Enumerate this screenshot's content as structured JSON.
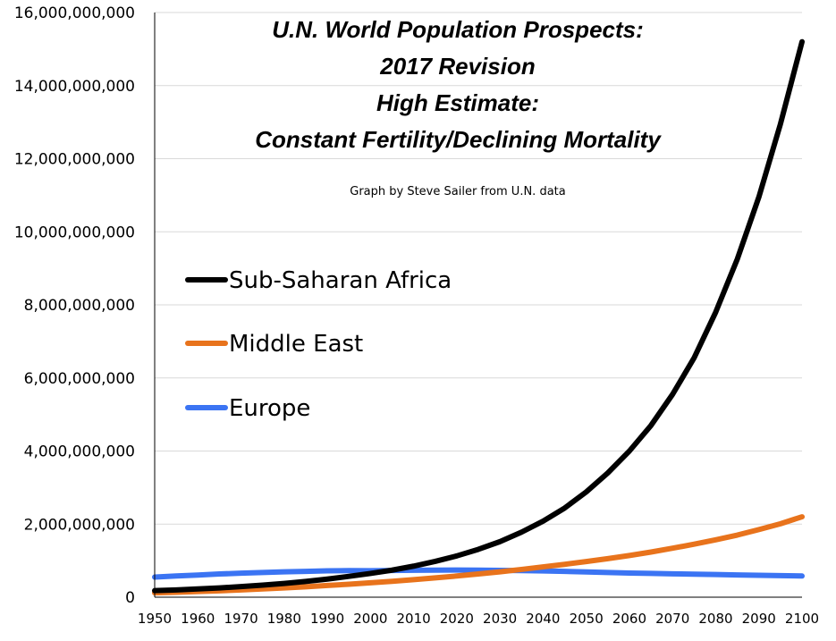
{
  "chart_data": {
    "type": "line",
    "title_lines": [
      "U.N. World Population Prospects:",
      "2017 Revision",
      "High Estimate:",
      "Constant Fertility/Declining Mortality"
    ],
    "subtitle": "Graph by Steve Sailer from U.N. data",
    "xlabel": "",
    "ylabel": "",
    "xlim": [
      1950,
      2100
    ],
    "ylim": [
      0,
      16000000000
    ],
    "x_ticks": [
      "1950",
      "1960",
      "1970",
      "1980",
      "1990",
      "2000",
      "2010",
      "2020",
      "2030",
      "2040",
      "2050",
      "2060",
      "2070",
      "2080",
      "2090",
      "2100"
    ],
    "y_ticks": [
      "0",
      "2,000,000,000",
      "4,000,000,000",
      "6,000,000,000",
      "8,000,000,000",
      "10,000,000,000",
      "12,000,000,000",
      "14,000,000,000",
      "16,000,000,000"
    ],
    "y_tick_values": [
      0,
      2000000000,
      4000000000,
      6000000000,
      8000000000,
      10000000000,
      12000000000,
      14000000000,
      16000000000
    ],
    "grid": true,
    "legend_position": "left",
    "x": [
      1950,
      1955,
      1960,
      1965,
      1970,
      1975,
      1980,
      1985,
      1990,
      1995,
      2000,
      2005,
      2010,
      2015,
      2020,
      2025,
      2030,
      2035,
      2040,
      2045,
      2050,
      2055,
      2060,
      2065,
      2070,
      2075,
      2080,
      2085,
      2090,
      2095,
      2100
    ],
    "series": [
      {
        "name": "Sub-Saharan Africa",
        "color": "#000000",
        "values": [
          180000000,
          200000000,
          225000000,
          255000000,
          290000000,
          330000000,
          375000000,
          430000000,
          495000000,
          570000000,
          650000000,
          740000000,
          850000000,
          980000000,
          1130000000,
          1310000000,
          1520000000,
          1780000000,
          2080000000,
          2440000000,
          2880000000,
          3400000000,
          4000000000,
          4700000000,
          5550000000,
          6550000000,
          7800000000,
          9250000000,
          10950000000,
          12950000000,
          15200000000
        ]
      },
      {
        "name": "Middle East",
        "color": "#e8731c",
        "values": [
          120000000,
          135000000,
          155000000,
          175000000,
          200000000,
          225000000,
          255000000,
          285000000,
          320000000,
          355000000,
          395000000,
          435000000,
          480000000,
          530000000,
          580000000,
          635000000,
          695000000,
          760000000,
          830000000,
          900000000,
          975000000,
          1055000000,
          1140000000,
          1235000000,
          1340000000,
          1450000000,
          1570000000,
          1700000000,
          1850000000,
          2010000000,
          2200000000
        ]
      },
      {
        "name": "Europe",
        "color": "#3b74f3",
        "values": [
          550000000,
          580000000,
          605000000,
          635000000,
          657000000,
          677000000,
          693000000,
          706000000,
          721000000,
          728000000,
          726000000,
          730000000,
          738000000,
          741000000,
          742000000,
          740000000,
          735000000,
          728000000,
          718000000,
          705000000,
          690000000,
          675000000,
          662000000,
          650000000,
          640000000,
          630000000,
          620000000,
          610000000,
          600000000,
          590000000,
          580000000
        ]
      }
    ]
  }
}
